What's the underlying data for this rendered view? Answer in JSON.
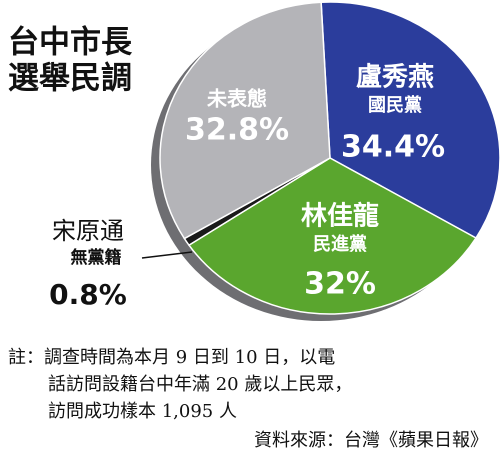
{
  "chart_data": {
    "type": "pie",
    "title": [
      "台中市長",
      "選舉民調"
    ],
    "categories": [
      "盧秀燕",
      "林佳龍",
      "宋原通",
      "未表態"
    ],
    "parties": [
      "國民黨",
      "民進黨",
      "無黨籍",
      null
    ],
    "values": [
      34.4,
      32,
      0.8,
      32.8
    ],
    "value_labels": [
      "34.4%",
      "32%",
      "0.8%",
      "32.8%"
    ],
    "colors": [
      "#2b3d9c",
      "#5aa62e",
      "#1a1a1a",
      "#b4b4b8"
    ],
    "note": [
      "註：調查時間為本月 9 日到 10 日，以電",
      "話訪問設籍台中年滿 20 歲以上民眾，",
      "訪問成功樣本 1,095 人"
    ],
    "source": "資料來源：台灣《蘋果日報》"
  }
}
